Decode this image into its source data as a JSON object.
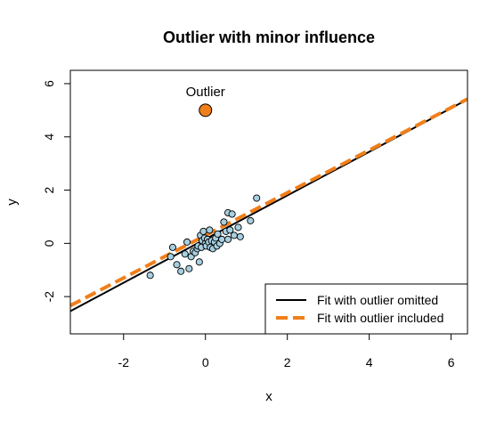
{
  "chart_data": {
    "type": "scatter",
    "title": "Outlier with minor influence",
    "xlabel": "x",
    "ylabel": "y",
    "xlim": [
      -3.3,
      6.4
    ],
    "ylim": [
      -3.4,
      6.5
    ],
    "xticks": [
      -2,
      0,
      2,
      4,
      6
    ],
    "yticks": [
      -2,
      0,
      2,
      4,
      6
    ],
    "xtick_labels": [
      "-2",
      "0",
      "2",
      "4",
      "6"
    ],
    "ytick_labels": [
      "-2",
      "0",
      "2",
      "4",
      "6"
    ],
    "grid": false,
    "legend_position": "bottom-right",
    "colors": {
      "points_fill": "#a6cfe0",
      "outlier_fill": "#f07f1a",
      "fit_omitted": "#000000",
      "fit_included": "#f07f1a"
    },
    "points": [
      {
        "x": -1.35,
        "y": -1.2
      },
      {
        "x": -0.85,
        "y": -0.5
      },
      {
        "x": -0.8,
        "y": -0.15
      },
      {
        "x": -0.7,
        "y": -0.8
      },
      {
        "x": -0.6,
        "y": -1.05
      },
      {
        "x": -0.5,
        "y": -0.4
      },
      {
        "x": -0.45,
        "y": 0.05
      },
      {
        "x": -0.4,
        "y": -0.95
      },
      {
        "x": -0.35,
        "y": -0.5
      },
      {
        "x": -0.3,
        "y": -0.3
      },
      {
        "x": -0.25,
        "y": -0.35
      },
      {
        "x": -0.2,
        "y": -0.2
      },
      {
        "x": -0.18,
        "y": -0.1
      },
      {
        "x": -0.15,
        "y": -0.7
      },
      {
        "x": -0.12,
        "y": 0.3
      },
      {
        "x": -0.1,
        "y": -0.15
      },
      {
        "x": -0.08,
        "y": 0.1
      },
      {
        "x": -0.05,
        "y": 0.45
      },
      {
        "x": -0.02,
        "y": 0.2
      },
      {
        "x": 0.0,
        "y": 0.0
      },
      {
        "x": 0.02,
        "y": -0.1
      },
      {
        "x": 0.05,
        "y": 0.15
      },
      {
        "x": 0.08,
        "y": 0.05
      },
      {
        "x": 0.1,
        "y": 0.5
      },
      {
        "x": 0.12,
        "y": -0.15
      },
      {
        "x": 0.15,
        "y": 0.1
      },
      {
        "x": 0.18,
        "y": -0.2
      },
      {
        "x": 0.22,
        "y": 0.05
      },
      {
        "x": 0.25,
        "y": 0.2
      },
      {
        "x": 0.28,
        "y": -0.1
      },
      {
        "x": 0.3,
        "y": 0.35
      },
      {
        "x": 0.35,
        "y": 0.0
      },
      {
        "x": 0.4,
        "y": 0.15
      },
      {
        "x": 0.45,
        "y": 0.8
      },
      {
        "x": 0.5,
        "y": 0.45
      },
      {
        "x": 0.55,
        "y": 0.15
      },
      {
        "x": 0.55,
        "y": 1.15
      },
      {
        "x": 0.6,
        "y": 0.5
      },
      {
        "x": 0.65,
        "y": 1.1
      },
      {
        "x": 0.7,
        "y": 0.3
      },
      {
        "x": 0.8,
        "y": 0.6
      },
      {
        "x": 0.85,
        "y": 0.25
      },
      {
        "x": 1.1,
        "y": 0.85
      },
      {
        "x": 1.25,
        "y": 1.7
      }
    ],
    "outlier": {
      "x": 0.0,
      "y": 5.0,
      "label": "Outlier"
    },
    "lines": [
      {
        "name": "Fit with outlier omitted",
        "intercept": 0.16,
        "slope": 0.82,
        "style": "solid",
        "color": "#000000"
      },
      {
        "name": "Fit with outlier included",
        "intercept": 0.3,
        "slope": 0.8,
        "style": "dashed",
        "color": "#f07f1a"
      }
    ]
  }
}
